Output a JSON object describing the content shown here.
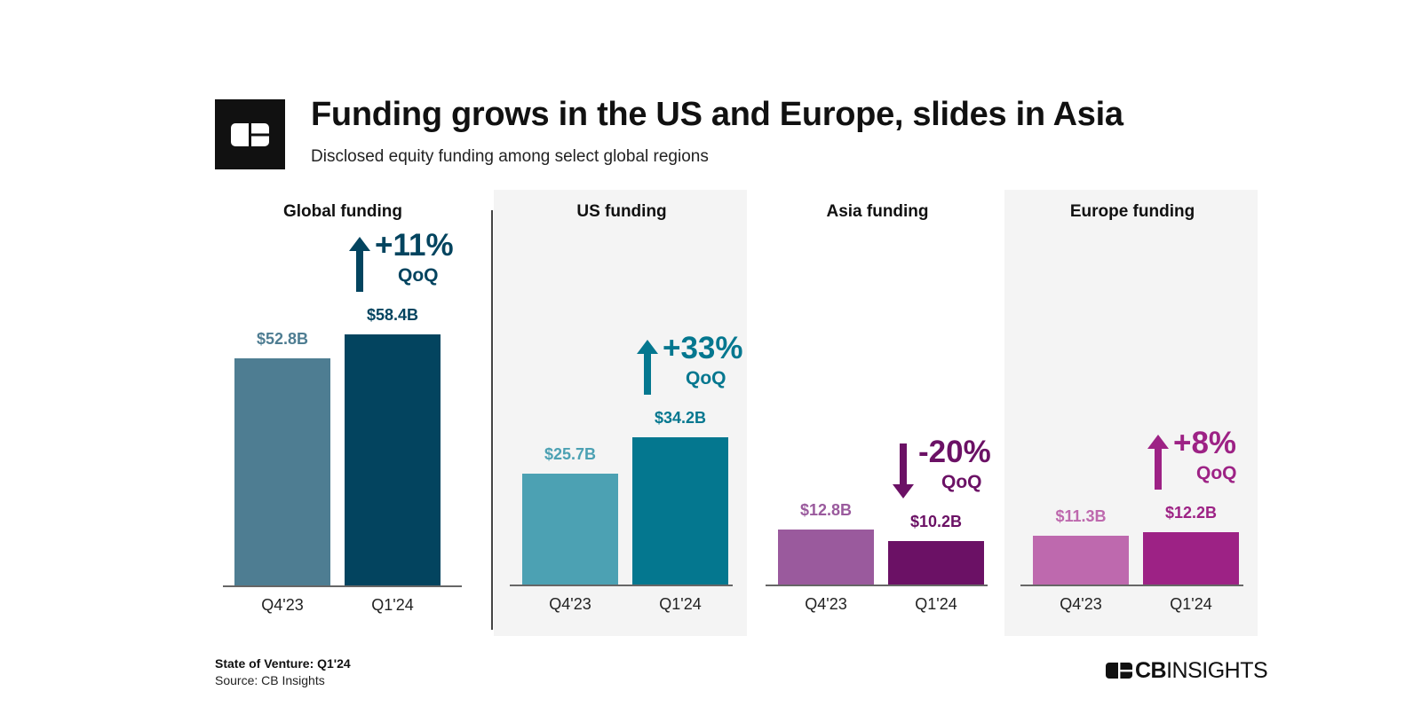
{
  "header": {
    "title": "Funding grows in the US and Europe, slides in Asia",
    "subtitle": "Disclosed equity funding among select global regions"
  },
  "footer": {
    "report": "State of Venture: Q1'24",
    "source": "Source: CB Insights",
    "brand_bold": "CB",
    "brand_light": "INSIGHTS"
  },
  "logo": {
    "icon": "cb-logo-icon",
    "color": "#111111"
  },
  "chart_data": [
    {
      "type": "bar",
      "title": "Global funding",
      "categories": [
        "Q4'23",
        "Q1'24"
      ],
      "values": [
        52.8,
        58.4
      ],
      "labels": [
        "$52.8B",
        "$58.4B"
      ],
      "colors": [
        "#4e7d92",
        "#03445f"
      ],
      "change": {
        "text": "+11%",
        "period": "QoQ",
        "direction": "up",
        "color": "#03445f"
      }
    },
    {
      "type": "bar",
      "title": "US funding",
      "categories": [
        "Q4'23",
        "Q1'24"
      ],
      "values": [
        25.7,
        34.2
      ],
      "labels": [
        "$25.7B",
        "$34.2B"
      ],
      "colors": [
        "#4ca1b3",
        "#04778f"
      ],
      "change": {
        "text": "+33%",
        "period": "QoQ",
        "direction": "up",
        "color": "#04778f"
      }
    },
    {
      "type": "bar",
      "title": "Asia funding",
      "categories": [
        "Q4'23",
        "Q1'24"
      ],
      "values": [
        12.8,
        10.2
      ],
      "labels": [
        "$12.8B",
        "$10.2B"
      ],
      "colors": [
        "#9a5a9d",
        "#6b1165"
      ],
      "change": {
        "text": "-20%",
        "period": "QoQ",
        "direction": "down",
        "color": "#6b1165"
      }
    },
    {
      "type": "bar",
      "title": "Europe funding",
      "categories": [
        "Q4'23",
        "Q1'24"
      ],
      "values": [
        11.3,
        12.2
      ],
      "labels": [
        "$11.3B",
        "$12.2B"
      ],
      "colors": [
        "#be69ae",
        "#9d2285"
      ],
      "change": {
        "text": "+8%",
        "period": "QoQ",
        "direction": "up",
        "color": "#9d2285"
      }
    }
  ]
}
